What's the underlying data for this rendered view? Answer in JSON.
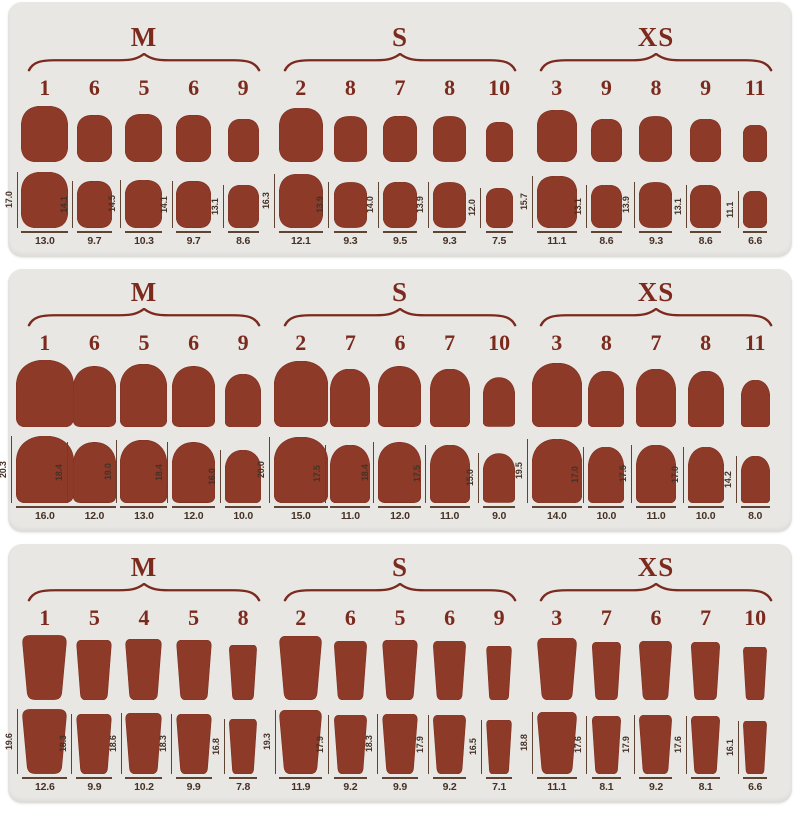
{
  "title": "press-on nail size chart",
  "colors": {
    "page_bg": "#ffffff",
    "panel_bg": "#e9e7e4",
    "nail": "#8d3a29",
    "serif_text": "#7b2b1e",
    "measure_text": "#453227",
    "measure_line": "#5f4433"
  },
  "panels": [
    {
      "shape": "squoval",
      "groups": [
        {
          "label": "M",
          "nails": [
            {
              "num": "1",
              "h": "17.0",
              "w": "13.0"
            },
            {
              "num": "6",
              "h": "14.1",
              "w": "9.7"
            },
            {
              "num": "5",
              "h": "14.5",
              "w": "10.3"
            },
            {
              "num": "6",
              "h": "14.1",
              "w": "9.7"
            },
            {
              "num": "9",
              "h": "13.1",
              "w": "8.6"
            }
          ]
        },
        {
          "label": "S",
          "nails": [
            {
              "num": "2",
              "h": "16.3",
              "w": "12.1"
            },
            {
              "num": "8",
              "h": "13.9",
              "w": "9.3"
            },
            {
              "num": "7",
              "h": "14.0",
              "w": "9.5"
            },
            {
              "num": "8",
              "h": "13.9",
              "w": "9.3"
            },
            {
              "num": "10",
              "h": "12.0",
              "w": "7.5"
            }
          ]
        },
        {
          "label": "XS",
          "nails": [
            {
              "num": "3",
              "h": "15.7",
              "w": "11.1"
            },
            {
              "num": "9",
              "h": "13.1",
              "w": "8.6"
            },
            {
              "num": "8",
              "h": "13.9",
              "w": "9.3"
            },
            {
              "num": "9",
              "h": "13.1",
              "w": "8.6"
            },
            {
              "num": "11",
              "h": "11.1",
              "w": "6.6"
            }
          ]
        }
      ]
    },
    {
      "shape": "almond",
      "groups": [
        {
          "label": "M",
          "nails": [
            {
              "num": "1",
              "h": "20.3",
              "w": "16.0"
            },
            {
              "num": "6",
              "h": "18.4",
              "w": "12.0"
            },
            {
              "num": "5",
              "h": "19.0",
              "w": "13.0"
            },
            {
              "num": "6",
              "h": "18.4",
              "w": "12.0"
            },
            {
              "num": "9",
              "h": "16.0",
              "w": "10.0"
            }
          ]
        },
        {
          "label": "S",
          "nails": [
            {
              "num": "2",
              "h": "20.0",
              "w": "15.0"
            },
            {
              "num": "7",
              "h": "17.5",
              "w": "11.0"
            },
            {
              "num": "6",
              "h": "18.4",
              "w": "12.0"
            },
            {
              "num": "7",
              "h": "17.5",
              "w": "11.0"
            },
            {
              "num": "10",
              "h": "15.0",
              "w": "9.0"
            }
          ]
        },
        {
          "label": "XS",
          "nails": [
            {
              "num": "3",
              "h": "19.5",
              "w": "14.0"
            },
            {
              "num": "8",
              "h": "17.0",
              "w": "10.0"
            },
            {
              "num": "7",
              "h": "17.5",
              "w": "11.0"
            },
            {
              "num": "8",
              "h": "17.0",
              "w": "10.0"
            },
            {
              "num": "11",
              "h": "14.2",
              "w": "8.0"
            }
          ]
        }
      ]
    },
    {
      "shape": "coffin",
      "groups": [
        {
          "label": "M",
          "nails": [
            {
              "num": "1",
              "h": "19.6",
              "w": "12.6"
            },
            {
              "num": "5",
              "h": "18.3",
              "w": "9.9"
            },
            {
              "num": "4",
              "h": "18.6",
              "w": "10.2"
            },
            {
              "num": "5",
              "h": "18.3",
              "w": "9.9"
            },
            {
              "num": "8",
              "h": "16.8",
              "w": "7.8"
            }
          ]
        },
        {
          "label": "S",
          "nails": [
            {
              "num": "2",
              "h": "19.3",
              "w": "11.9"
            },
            {
              "num": "6",
              "h": "17.9",
              "w": "9.2"
            },
            {
              "num": "5",
              "h": "18.3",
              "w": "9.9"
            },
            {
              "num": "6",
              "h": "17.9",
              "w": "9.2"
            },
            {
              "num": "9",
              "h": "16.5",
              "w": "7.1"
            }
          ]
        },
        {
          "label": "XS",
          "nails": [
            {
              "num": "3",
              "h": "18.8",
              "w": "11.1"
            },
            {
              "num": "7",
              "h": "17.6",
              "w": "8.1"
            },
            {
              "num": "6",
              "h": "17.9",
              "w": "9.2"
            },
            {
              "num": "7",
              "h": "17.6",
              "w": "8.1"
            },
            {
              "num": "10",
              "h": "16.1",
              "w": "6.6"
            }
          ]
        }
      ]
    }
  ]
}
